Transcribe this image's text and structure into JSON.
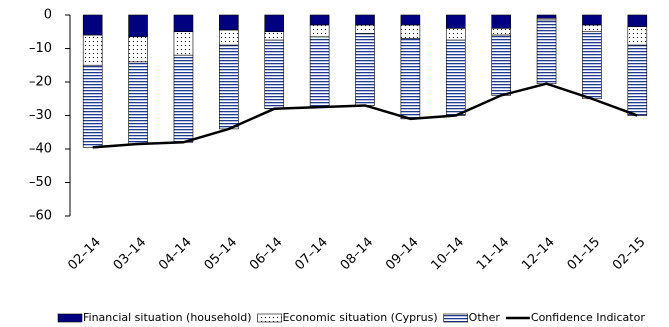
{
  "chart_data": {
    "type": "bar",
    "categories": [
      "02–14",
      "03–14",
      "04–14",
      "05–14",
      "06–14",
      "07–14",
      "08–14",
      "09–14",
      "10–14",
      "11–14",
      "12–14",
      "01–15",
      "02–15"
    ],
    "series": [
      {
        "name": "Financial situation (household)",
        "color": "#000080",
        "pattern": "solid",
        "values": [
          -6,
          -6.5,
          -5,
          -4.5,
          -5,
          -3,
          -3,
          -3,
          -4,
          -4,
          -1,
          -3,
          -3.5
        ]
      },
      {
        "name": "Economic situation (Cyprus)",
        "color": "#000000",
        "pattern": "dots",
        "values": [
          -9,
          -7.5,
          -7,
          -4.5,
          -2.5,
          -3.5,
          -2.5,
          -4,
          -3.5,
          -2,
          -0.5,
          -2,
          -5.5
        ]
      },
      {
        "name": "Other",
        "color": "#1f3a93",
        "pattern": "stripes",
        "values": [
          -24.5,
          -24.5,
          -26,
          -25,
          -20.5,
          -21,
          -21.5,
          -24,
          -22.5,
          -18,
          -19,
          -20,
          -21
        ]
      },
      {
        "name": "Confidence Indicator",
        "color": "#000000",
        "type": "line",
        "values": [
          -39.5,
          -38.5,
          -38,
          -34,
          -28,
          -27.5,
          -27,
          -31,
          -30,
          -24,
          -20.5,
          -25,
          -30
        ]
      }
    ],
    "stacked": true,
    "ylim": [
      -60,
      0
    ],
    "yticks": [
      {
        "value": 0,
        "label": "0"
      },
      {
        "value": -10,
        "label": "–10"
      },
      {
        "value": -20,
        "label": "–20"
      },
      {
        "value": -30,
        "label": "–30"
      },
      {
        "value": -40,
        "label": "–40"
      },
      {
        "value": -50,
        "label": "–50"
      },
      {
        "value": -60,
        "label": "–60"
      }
    ]
  }
}
